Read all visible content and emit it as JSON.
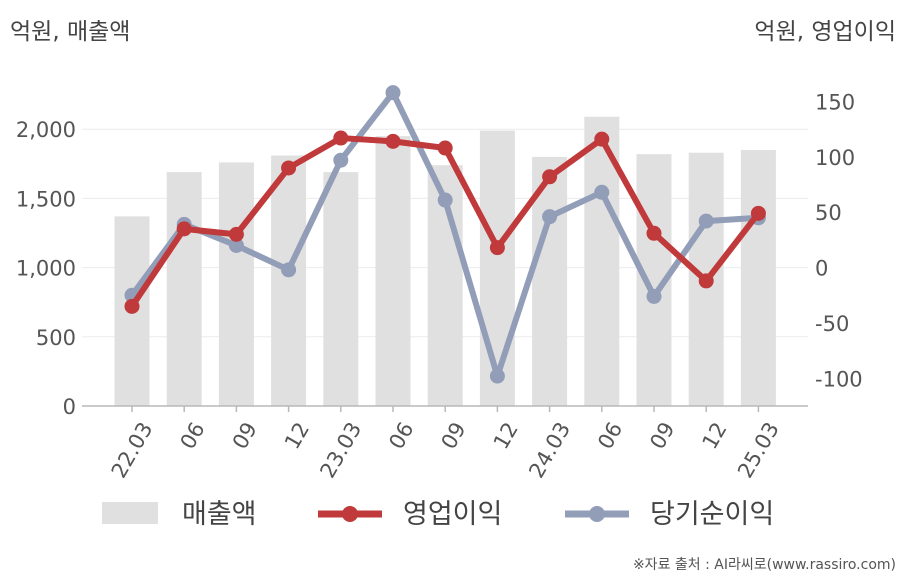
{
  "left_axis_unit": "억원, 매출액",
  "right_axis_unit": "억원, 영업이익",
  "source_note": "※자료 출처 : AI라씨로(www.rassiro.com)",
  "colors": {
    "bar": "#e0e0e0",
    "operating": "#c0393b",
    "net": "#929db8",
    "grid": "#ebebeb",
    "axis": "#b8b8b8"
  },
  "chart_data": {
    "type": "bar",
    "categories": [
      "22.03",
      "06",
      "09",
      "12",
      "23.03",
      "06",
      "09",
      "12",
      "24.03",
      "06",
      "09",
      "12",
      "25.03"
    ],
    "left_ticks": [
      "0",
      "500",
      "1,000",
      "1,500",
      "2,000"
    ],
    "right_ticks": [
      "-100",
      "-50",
      "0",
      "50",
      "100",
      "150"
    ],
    "ylim_left": [
      0,
      2500
    ],
    "ylim_right": [
      -125,
      187.5
    ],
    "series": [
      {
        "name": "매출액",
        "type": "bar",
        "axis": "left",
        "values": [
          1370,
          1690,
          1760,
          1810,
          1690,
          1950,
          1740,
          1990,
          1800,
          2090,
          1820,
          1830,
          1850
        ]
      },
      {
        "name": "영업이익",
        "type": "line",
        "axis": "right",
        "values": [
          -35,
          35,
          30,
          90,
          117,
          114,
          108,
          18,
          82,
          116,
          31,
          -12,
          49
        ]
      },
      {
        "name": "당기순이익",
        "type": "line",
        "axis": "right",
        "values": [
          -25,
          39,
          20,
          -2,
          97,
          158,
          61,
          -98,
          46,
          68,
          -26,
          42,
          45
        ]
      }
    ],
    "legend": [
      "매출액",
      "영업이익",
      "당기순이익"
    ],
    "legend_position": "bottom",
    "grid": true
  }
}
